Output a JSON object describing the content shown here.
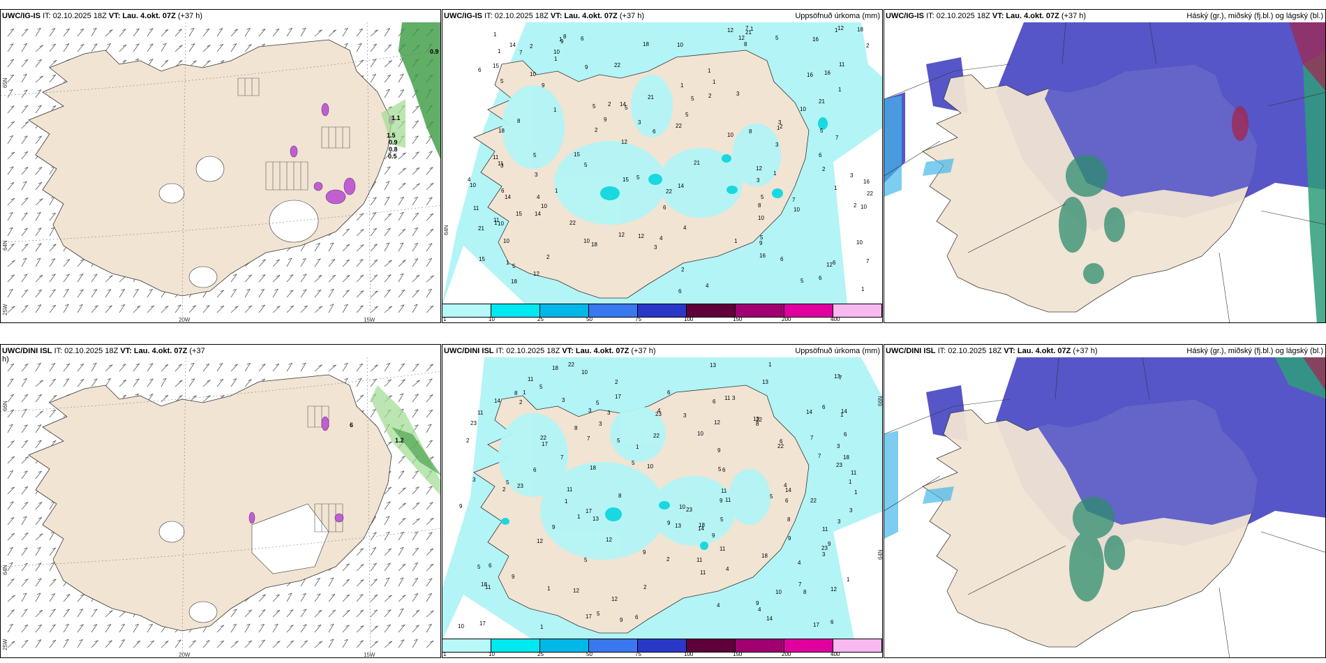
{
  "rows": [
    {
      "wind": {
        "model": "UWC/IG-IS",
        "it_label": "IT: 02.10.2025 18Z",
        "vt_label": "VT: Lau. 4.okt. 07Z",
        "lead": "(+37 h)",
        "lat_labels": [
          "65N",
          "64N",
          "25W"
        ],
        "lon_labels": [
          "20W",
          "15W"
        ],
        "values": [
          "0.9",
          "1.1",
          "1.5",
          "0.9",
          "0.8",
          "0.5"
        ]
      },
      "precip": {
        "model": "UWC/IG-IS",
        "it_label": "IT: 02.10.2025 18Z",
        "vt_label": "VT: Lau. 4.okt. 07Z",
        "lead": "(+37 h)",
        "title": "Uppsöfnuð úrkoma (mm)",
        "side_labels": [
          "64N"
        ],
        "numbers": [
          "3",
          "2",
          "1",
          "9",
          "5",
          "6",
          "10",
          "8",
          "5",
          "4",
          "15",
          "11",
          "1",
          "6",
          "12",
          "7",
          "22",
          "21",
          "14",
          "10",
          "18",
          "16",
          "2",
          "1",
          "12",
          "10",
          "5",
          "3",
          "1"
        ]
      },
      "cloud": {
        "model": "UWC/IG-IS",
        "it_label": "IT: 02.10.2025 18Z",
        "vt_label": "VT: Lau. 4.okt. 07Z",
        "lead": "(+37 h)",
        "title": "Háský (gr.), miðský (fj.bl.) og lágský (bl.)"
      }
    },
    {
      "wind": {
        "model": "UWC/DINI ISL",
        "it_label": "IT: 02.10.2025 18Z",
        "vt_label": "VT: Lau. 4.okt. 07Z",
        "lead": "(+37",
        "lead2": "h)",
        "lat_labels": [
          "66N",
          "64N",
          "25W"
        ],
        "lon_labels": [
          "20W",
          "15W"
        ],
        "values": [
          "6",
          "1.2"
        ]
      },
      "precip": {
        "model": "UWC/DINI ISL",
        "it_label": "IT: 02.10.2025 18Z",
        "vt_label": "VT: Lau. 4.okt. 07Z",
        "lead": "(+37 h)",
        "title": "Uppsöfnuð úrkoma (mm)",
        "side_labels": [
          "66N",
          "64N"
        ],
        "numbers": [
          "1",
          "3",
          "2",
          "4",
          "5",
          "7",
          "6",
          "8",
          "11",
          "10",
          "9",
          "12",
          "13",
          "17",
          "14",
          "22",
          "23",
          "18",
          "11",
          "9",
          "6",
          "3",
          "5",
          "1"
        ]
      },
      "cloud": {
        "model": "UWC/DINI ISL",
        "it_label": "IT: 02.10.2025 18Z",
        "vt_label": "VT: Lau. 4.okt. 07Z",
        "lead": "(+37 h)",
        "title": "Háský (gr.), miðský (fj.bl.) og lágský (bl.)"
      }
    }
  ],
  "colorbar": {
    "ticks": [
      "1",
      "10",
      "25",
      "50",
      "75",
      "100",
      "150",
      "200",
      "400"
    ],
    "colors": [
      "#b8f8f8",
      "#00e8f0",
      "#00b8e8",
      "#3a78f0",
      "#2a38c8",
      "#600038",
      "#a00070",
      "#e000a0",
      "#f8b8f0"
    ]
  },
  "colors": {
    "land": "#f1e4d3",
    "precip": "#b3f4f6",
    "precip_heavy": "#18d8e0",
    "high_cloud": "#5656c8",
    "mid_cloud": "#2e8c6e",
    "low_cloud": "#44b8e8",
    "green_shade": "#3a9a40",
    "purple": "#c060d0"
  }
}
